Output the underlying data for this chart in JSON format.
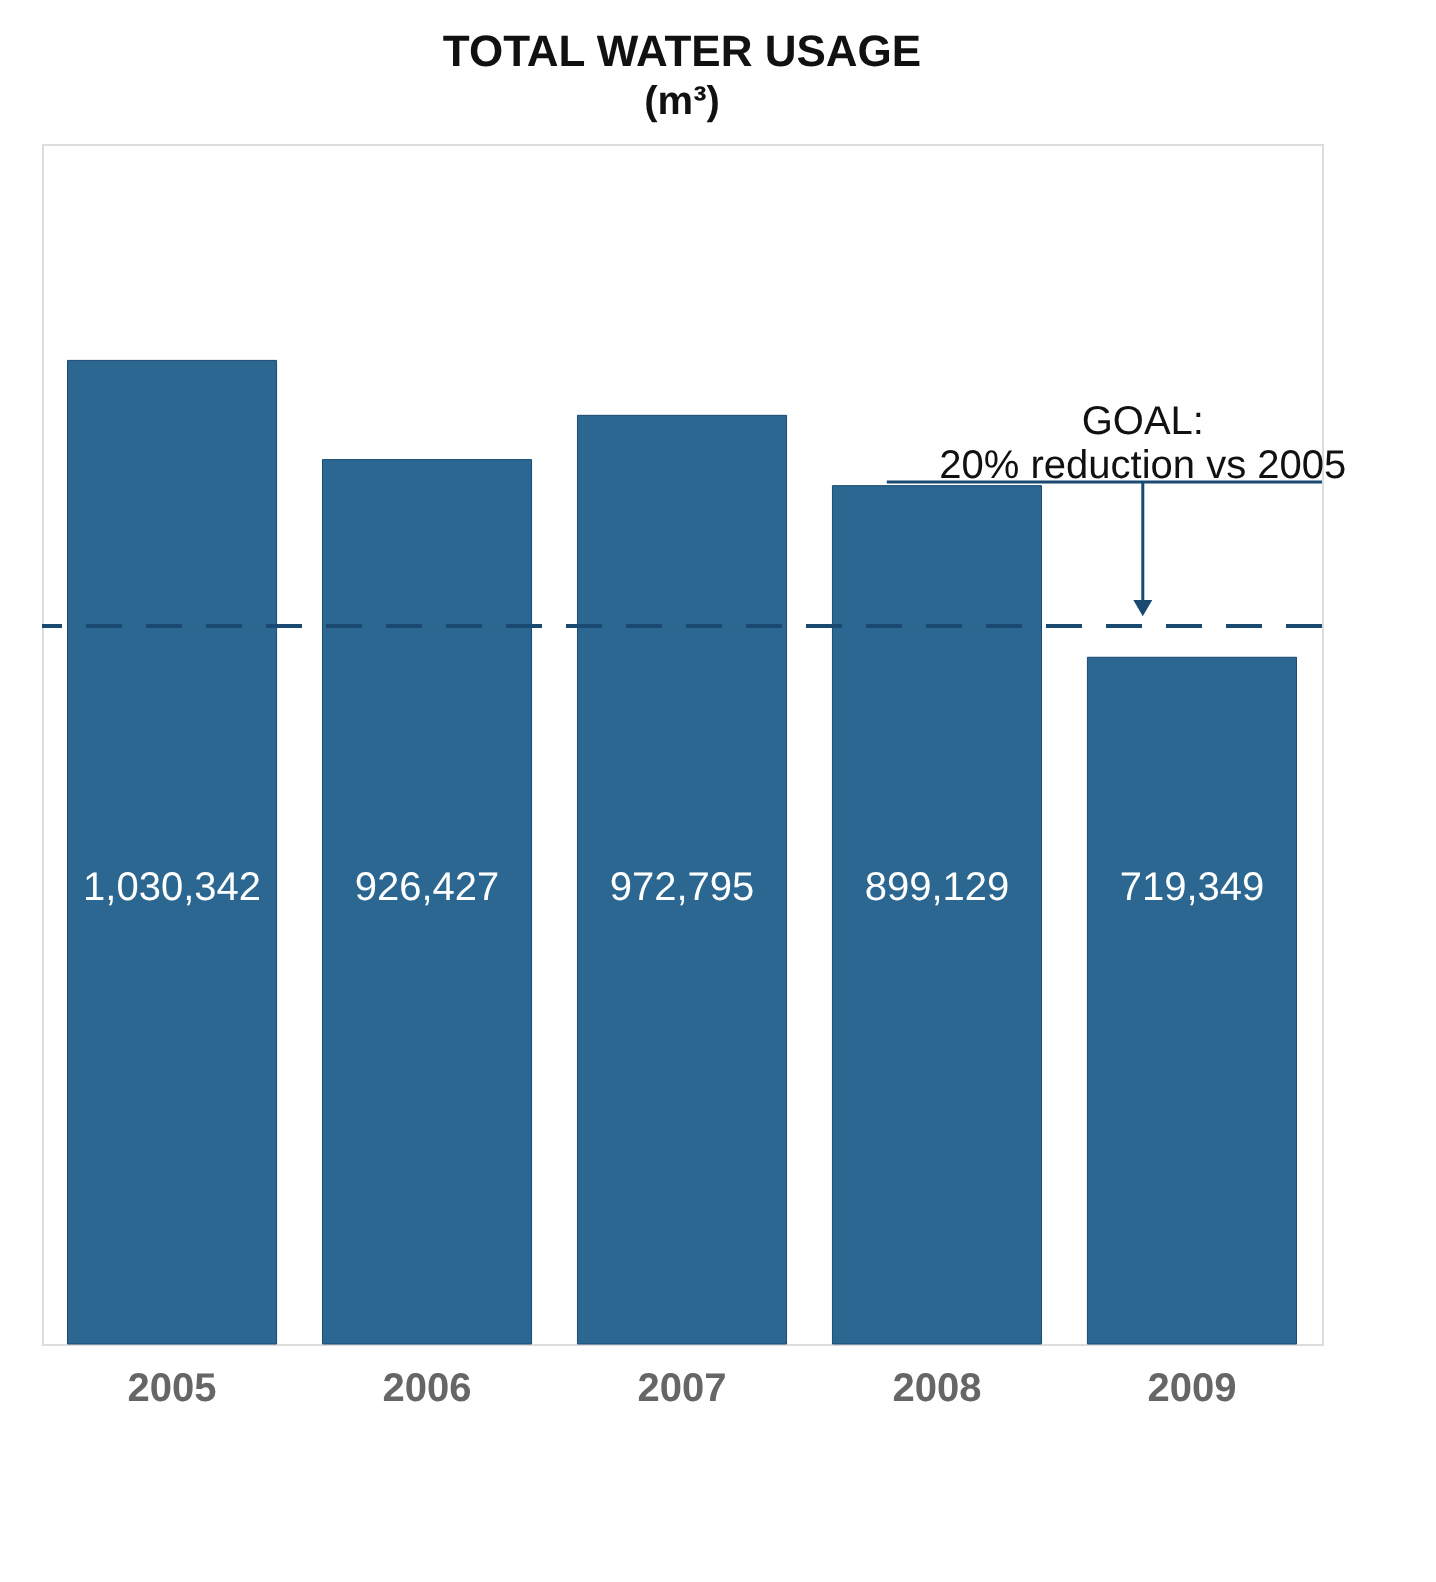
{
  "chart_data": {
    "type": "bar",
    "title": "TOTAL WATER USAGE",
    "subtitle": "(m³)",
    "categories": [
      "2005",
      "2006",
      "2007",
      "2008",
      "2009"
    ],
    "values": [
      1030342,
      926427,
      972795,
      899129,
      719349
    ],
    "value_labels": [
      "1,030,342",
      "926,427",
      "972,795",
      "899,129",
      "719,349"
    ],
    "color": "#2b6790",
    "tick_labels": "x",
    "annotations": [
      "GOAL:\n20% reduction vs 2005"
    ],
    "ref_lines": [
      {
        "axis": "y",
        "value": 752000,
        "color": "#1a4a72",
        "line_style": "dashed"
      }
    ]
  }
}
